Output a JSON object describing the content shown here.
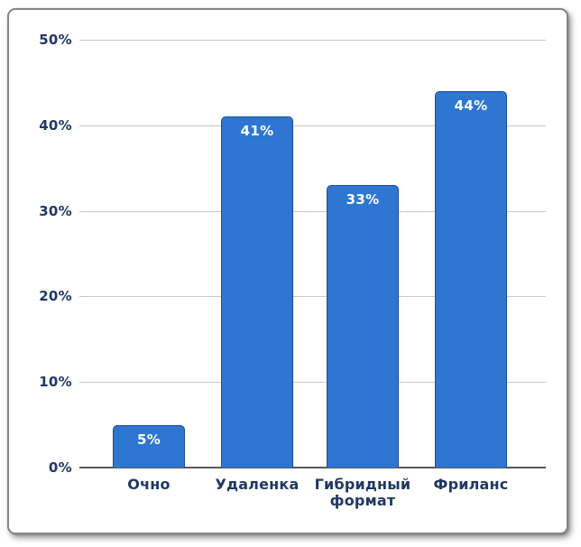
{
  "chart_data": {
    "type": "bar",
    "title": "",
    "xlabel": "",
    "ylabel": "",
    "categories": [
      "Очно",
      "Удаленка",
      "Гибридный формат",
      "Фриланс"
    ],
    "values": [
      5,
      41,
      33,
      44
    ],
    "data_labels": [
      "5%",
      "41%",
      "33%",
      "44%"
    ],
    "ylim": [
      0,
      50
    ],
    "ytick_values": [
      0,
      10,
      20,
      30,
      40,
      50
    ],
    "ytick_labels": [
      "0%",
      "10%",
      "20%",
      "30%",
      "40%",
      "50%"
    ],
    "grid": true,
    "legend": false,
    "colors": {
      "bar_fill": "#2E76D1",
      "bar_border": "#1A4C9C",
      "value_label": "#FFFFFF",
      "tick_label": "#1F3864",
      "gridline": "#C9C9C9",
      "axis_line": "#595959",
      "plot_background": "#FFFFFF",
      "frame_border": "#858585"
    }
  }
}
